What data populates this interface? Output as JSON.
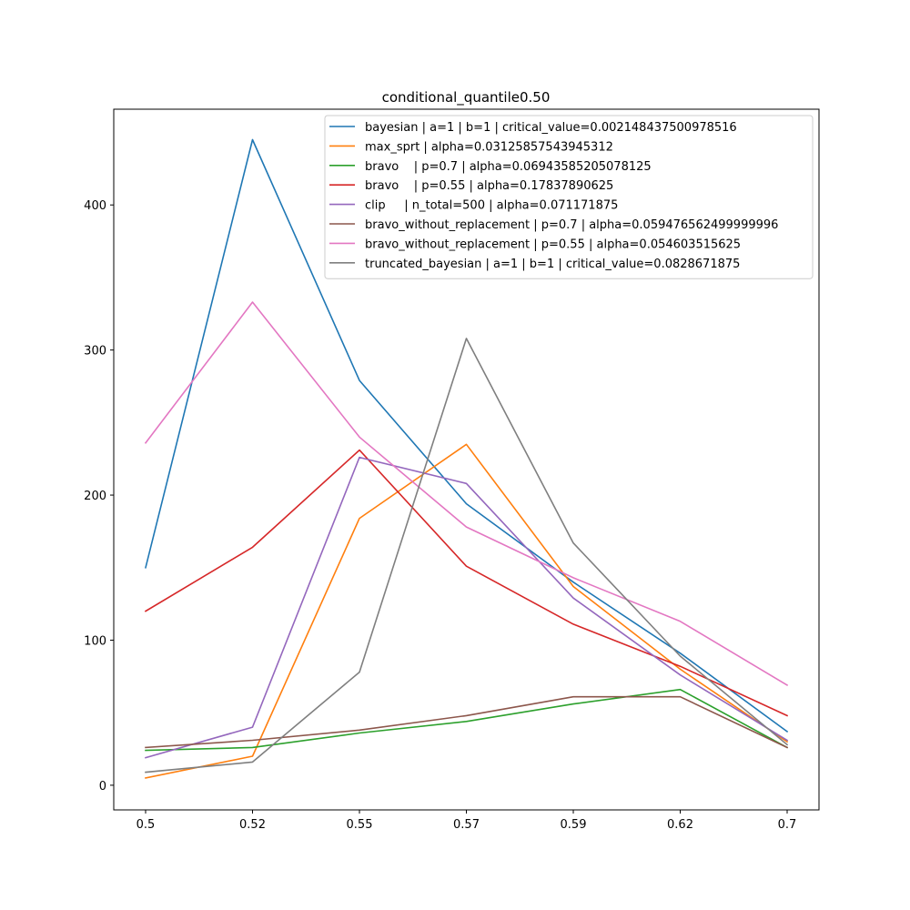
{
  "chart_data": {
    "type": "line",
    "title": "conditional_quantile0.50",
    "xlabel": "",
    "ylabel": "",
    "categories": [
      "0.5",
      "0.52",
      "0.55",
      "0.57",
      "0.59",
      "0.62",
      "0.7"
    ],
    "ylim": [
      -17,
      466
    ],
    "yticks": [
      0,
      100,
      200,
      300,
      400
    ],
    "grid": false,
    "legend_position": "top-right",
    "series": [
      {
        "name": "bayesian | a=1 | b=1 | critical_value=0.002148437500978516",
        "color": "#1f77b4",
        "values": [
          150,
          445,
          279,
          194,
          140,
          91,
          37
        ]
      },
      {
        "name": "max_sprt | alpha=0.03125857543945312",
        "color": "#ff7f0e",
        "values": [
          5,
          20,
          184,
          235,
          137,
          80,
          30
        ]
      },
      {
        "name": "bravo    | p=0.7 | alpha=0.06943585205078125",
        "color": "#2ca02c",
        "values": [
          24,
          26,
          36,
          44,
          56,
          66,
          26
        ]
      },
      {
        "name": "bravo    | p=0.55 | alpha=0.17837890625",
        "color": "#d62728",
        "values": [
          120,
          164,
          231,
          151,
          111,
          82,
          48
        ]
      },
      {
        "name": "clip     | n_total=500 | alpha=0.071171875",
        "color": "#9467bd",
        "values": [
          19,
          40,
          226,
          208,
          129,
          76,
          31
        ]
      },
      {
        "name": "bravo_without_replacement | p=0.7 | alpha=0.059476562499999996",
        "color": "#8c564b",
        "values": [
          26,
          31,
          38,
          48,
          61,
          61,
          26
        ]
      },
      {
        "name": "bravo_without_replacement | p=0.55 | alpha=0.054603515625",
        "color": "#e377c2",
        "values": [
          236,
          333,
          240,
          178,
          143,
          113,
          69
        ]
      },
      {
        "name": "truncated_bayesian | a=1 | b=1 | critical_value=0.0828671875",
        "color": "#7f7f7f",
        "values": [
          9,
          16,
          78,
          308,
          167,
          89,
          28
        ]
      }
    ]
  }
}
